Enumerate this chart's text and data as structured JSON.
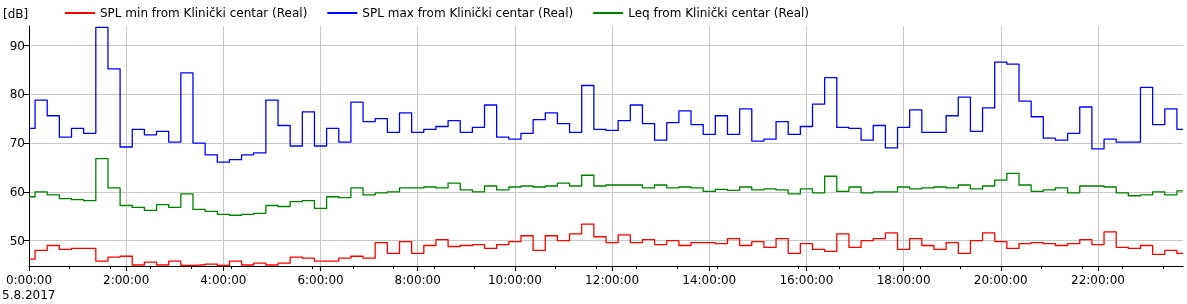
{
  "chart_data": {
    "type": "step",
    "ylabel": "[dB]",
    "legend": "top left",
    "grid": true,
    "annotations": [
      "5.8.2017"
    ],
    "x": [
      0,
      0.25,
      0.5,
      0.75,
      1,
      1.25,
      1.5,
      1.75,
      2,
      2.25,
      2.5,
      2.75,
      3,
      3.25,
      3.5,
      3.75,
      4,
      4.25,
      4.5,
      4.75,
      5,
      5.25,
      5.5,
      5.75,
      6,
      6.25,
      6.5,
      6.75,
      7,
      7.25,
      7.5,
      7.75,
      8,
      8.25,
      8.5,
      8.75,
      9,
      9.25,
      9.5,
      9.75,
      10,
      10.25,
      10.5,
      10.75,
      11,
      11.25,
      11.5,
      11.75,
      12,
      12.25,
      12.5,
      12.75,
      13,
      13.25,
      13.5,
      13.75,
      14,
      14.25,
      14.5,
      14.75,
      15,
      15.25,
      15.5,
      15.75,
      16,
      16.25,
      16.5,
      16.75,
      17,
      17.25,
      17.5,
      17.75,
      18,
      18.25,
      18.5,
      18.75,
      19,
      19.25,
      19.5,
      19.75,
      20,
      20.25,
      20.5,
      20.75,
      21,
      21.25,
      21.5,
      21.75,
      22,
      22.25,
      22.5,
      22.75,
      23,
      23.25,
      23.5,
      23.75
    ],
    "xlim": [
      0,
      23.75
    ],
    "xticks": [
      {
        "value": 0,
        "label": "0:00:00"
      },
      {
        "value": 2,
        "label": "2:00:00"
      },
      {
        "value": 4,
        "label": "4:00:00"
      },
      {
        "value": 6,
        "label": "6:00:00"
      },
      {
        "value": 8,
        "label": "8:00:00"
      },
      {
        "value": 10,
        "label": "10:00:00"
      },
      {
        "value": 12,
        "label": "12:00:00"
      },
      {
        "value": 14,
        "label": "14:00:00"
      },
      {
        "value": 16,
        "label": "16:00:00"
      },
      {
        "value": 18,
        "label": "18:00:00"
      },
      {
        "value": 20,
        "label": "20:00:00"
      },
      {
        "value": 22,
        "label": "22:00:00"
      }
    ],
    "ylim": [
      44.8,
      94
    ],
    "yticks": [
      50,
      60,
      70,
      80,
      90
    ],
    "series": [
      {
        "name": "SPL min from Klinički centar (Real)",
        "color": "#ff0000",
        "values": [
          46.2,
          48.0,
          49.0,
          48.2,
          48.4,
          48.4,
          45.8,
          46.6,
          46.8,
          45.0,
          45.6,
          45.0,
          45.8,
          44.9,
          45.0,
          45.2,
          44.9,
          45.8,
          45.0,
          45.4,
          45.0,
          45.4,
          46.6,
          46.4,
          45.8,
          45.8,
          46.4,
          46.8,
          46.4,
          49.6,
          47.4,
          49.8,
          47.4,
          49.0,
          50.2,
          48.8,
          49.0,
          49.2,
          48.4,
          49.2,
          49.8,
          51.0,
          48.0,
          51.0,
          50.0,
          51.4,
          53.4,
          50.8,
          49.6,
          51.2,
          49.6,
          50.2,
          49.2,
          50.0,
          49.0,
          49.6,
          49.6,
          49.4,
          50.4,
          49.0,
          49.8,
          48.6,
          50.4,
          47.4,
          49.4,
          48.2,
          47.8,
          51.4,
          48.6,
          50.0,
          50.4,
          51.6,
          48.2,
          50.4,
          49.0,
          48.2,
          49.6,
          47.4,
          50.0,
          51.6,
          49.8,
          48.4,
          49.4,
          49.6,
          49.4,
          49.0,
          49.4,
          50.2,
          49.2,
          51.8,
          48.6,
          48.4,
          49.0,
          47.2,
          48.0,
          47.4
        ]
      },
      {
        "name": "SPL max from Klinički centar (Real)",
        "color": "#0000ff",
        "values": [
          73.0,
          78.8,
          75.6,
          71.2,
          73.0,
          72.0,
          93.7,
          85.2,
          69.2,
          72.8,
          71.7,
          72.4,
          70.2,
          84.4,
          70.0,
          67.6,
          66.1,
          66.6,
          67.6,
          68.0,
          78.8,
          73.6,
          69.4,
          76.4,
          69.4,
          73.0,
          70.2,
          78.4,
          74.4,
          75.0,
          72.2,
          76.2,
          72.2,
          72.8,
          73.4,
          74.6,
          72.2,
          73.2,
          77.8,
          71.2,
          70.8,
          72.0,
          74.8,
          76.2,
          74.0,
          72.2,
          81.8,
          72.8,
          72.6,
          74.6,
          77.8,
          74.0,
          70.6,
          74.2,
          76.6,
          73.8,
          71.8,
          75.6,
          71.8,
          77.0,
          70.4,
          70.8,
          74.4,
          71.8,
          73.4,
          78.0,
          83.4,
          73.2,
          73.0,
          70.6,
          73.6,
          69.0,
          73.2,
          76.8,
          72.2,
          72.2,
          75.6,
          79.4,
          72.4,
          77.2,
          86.6,
          86.2,
          78.6,
          75.4,
          71.0,
          70.6,
          72.0,
          77.4,
          68.8,
          70.8,
          70.2,
          70.2,
          81.4,
          73.8,
          77.0,
          72.8
        ]
      },
      {
        "name": "Leq from Klinički centar (Real)",
        "color": "#008000",
        "values": [
          59.0,
          60.0,
          59.4,
          58.6,
          58.4,
          58.2,
          66.8,
          60.8,
          57.2,
          56.8,
          56.2,
          57.4,
          56.8,
          59.6,
          56.4,
          56.0,
          55.4,
          55.2,
          55.4,
          55.6,
          57.2,
          57.0,
          58.0,
          58.2,
          56.6,
          59.0,
          58.8,
          60.8,
          59.4,
          59.8,
          60.0,
          60.8,
          60.8,
          61.0,
          60.8,
          61.8,
          60.4,
          60.0,
          61.2,
          60.4,
          61.0,
          61.2,
          61.0,
          61.2,
          61.8,
          61.2,
          63.4,
          61.2,
          61.4,
          61.4,
          61.4,
          60.8,
          61.4,
          60.8,
          61.0,
          60.8,
          60.1,
          60.5,
          60.3,
          61.0,
          60.4,
          60.6,
          60.4,
          59.6,
          60.6,
          59.8,
          63.2,
          60.1,
          61.0,
          59.8,
          60.0,
          60.0,
          61.0,
          60.6,
          60.8,
          61.0,
          60.8,
          61.4,
          60.6,
          61.2,
          62.4,
          63.8,
          61.4,
          60.1,
          60.4,
          60.8,
          59.8,
          61.2,
          61.2,
          61.0,
          59.8,
          59.2,
          59.4,
          60.0,
          59.4,
          60.2
        ]
      }
    ]
  }
}
